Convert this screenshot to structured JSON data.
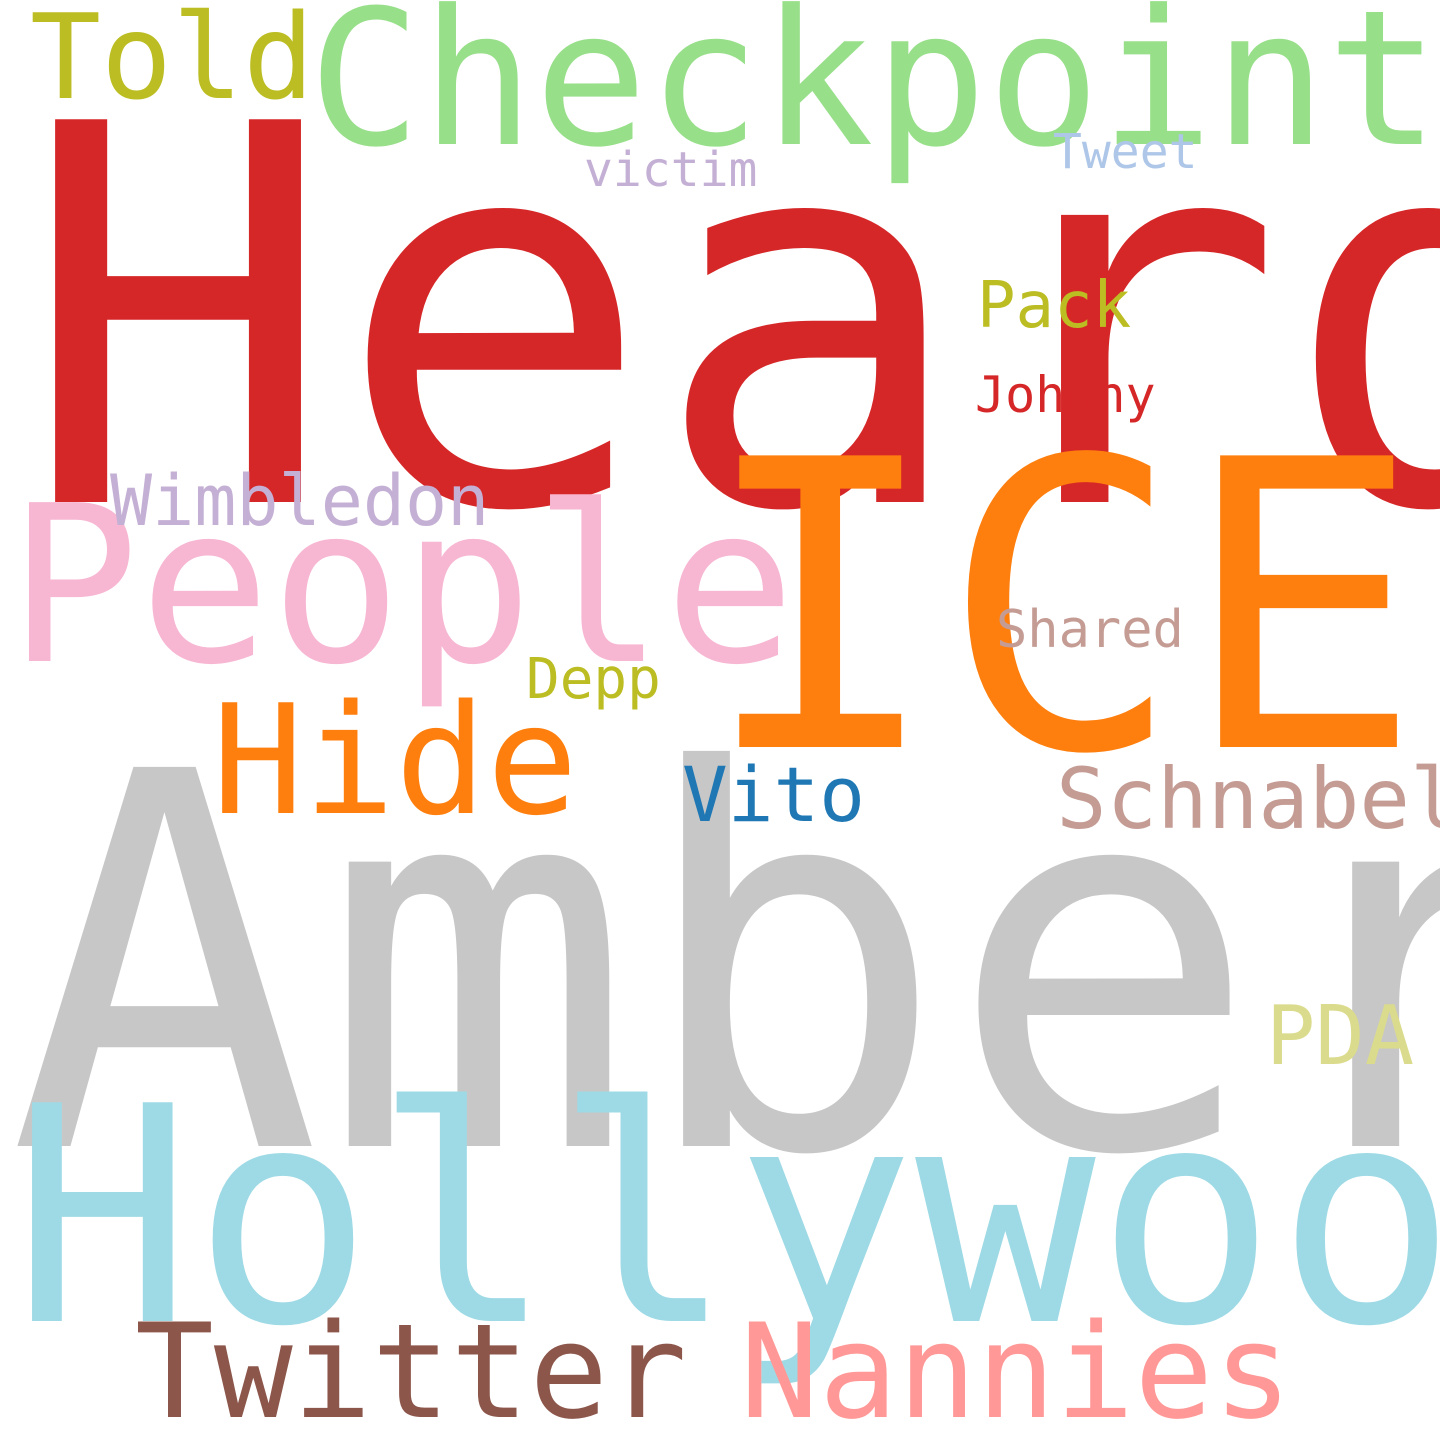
{
  "words": [
    {
      "text": "Heard",
      "color": "#d62728"
    },
    {
      "text": "Amber",
      "color": "#c7c7c7"
    },
    {
      "text": "ICE",
      "color": "#ff7f0e"
    },
    {
      "text": "Hollywood",
      "color": "#9edae5"
    },
    {
      "text": "Checkpoint",
      "color": "#98df8a"
    },
    {
      "text": "People",
      "color": "#f7b6d2"
    },
    {
      "text": "Hide",
      "color": "#ff7f0e"
    },
    {
      "text": "Twitter",
      "color": "#8c564b"
    },
    {
      "text": "Nannies",
      "color": "#ff9896"
    },
    {
      "text": "Told",
      "color": "#bcbd22"
    },
    {
      "text": "Schnabel",
      "color": "#c49c94"
    },
    {
      "text": "Vito",
      "color": "#1f77b4"
    },
    {
      "text": "PDA",
      "color": "#dbdb8d"
    },
    {
      "text": "Wimbledon",
      "color": "#c5b0d5"
    },
    {
      "text": "Pack",
      "color": "#bcbd22"
    },
    {
      "text": "Shared",
      "color": "#c49c94"
    },
    {
      "text": "Depp",
      "color": "#bcbd22"
    },
    {
      "text": "Johnny",
      "color": "#d62728"
    },
    {
      "text": "victim",
      "color": "#c5b0d5"
    },
    {
      "text": "Tweet",
      "color": "#aec7e8"
    }
  ]
}
